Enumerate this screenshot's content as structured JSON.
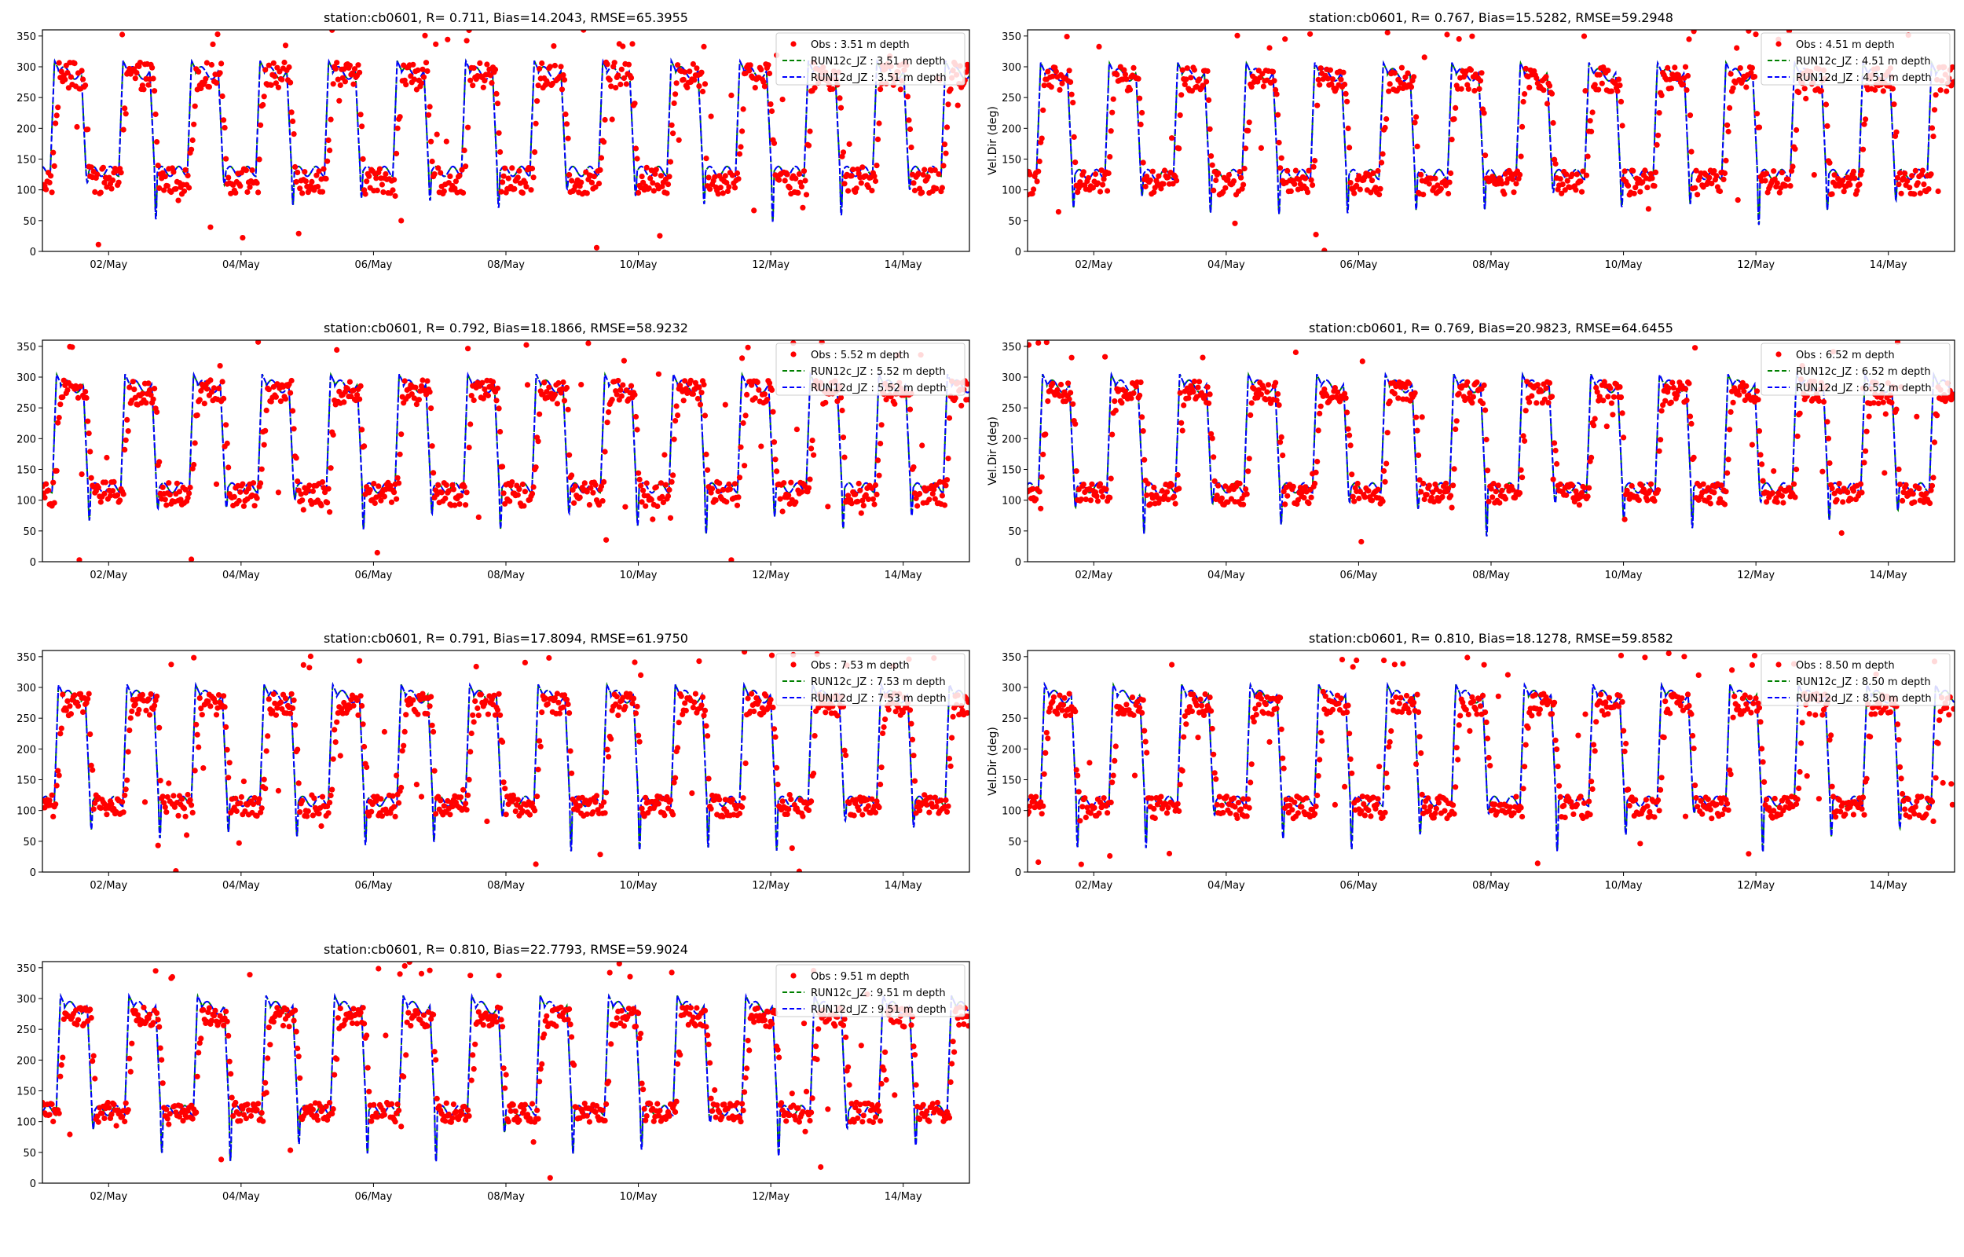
{
  "figure": {
    "background": "#ffffff"
  },
  "colors": {
    "obs": "#ff0000",
    "run12c": "#008000",
    "run12d": "#0000ff",
    "axis": "#000000"
  },
  "chart_data": [
    {
      "type": "scatter",
      "title": "station:cb0601, R= 0.711, Bias=14.2043, RMSE=65.3955",
      "ylabel": "",
      "ylim": [
        0,
        360
      ],
      "xlim": [
        1.0,
        15.0
      ],
      "yticks": [
        "0",
        "50",
        "100",
        "150",
        "200",
        "250",
        "300",
        "350"
      ],
      "xticks": [
        "02/May",
        "04/May",
        "06/May",
        "08/May",
        "10/May",
        "12/May",
        "14/May"
      ],
      "legend": [
        "Obs : 3.51 m depth",
        "RUN12c_JZ : 3.51 m depth",
        "RUN12d_JZ : 3.51 m depth"
      ],
      "legend_position": "top-right",
      "series": [
        {
          "name": "Obs : 3.51 m depth",
          "style": "dots",
          "color": "red",
          "high_level": 285,
          "low_level": 115,
          "scatter": 22
        },
        {
          "name": "RUN12c_JZ : 3.51 m depth",
          "style": "dashed",
          "color": "green",
          "high_level": 295,
          "low_level": 130
        },
        {
          "name": "RUN12d_JZ : 3.51 m depth",
          "style": "dashed",
          "color": "blue",
          "high_level": 295,
          "low_level": 130
        }
      ]
    },
    {
      "type": "scatter",
      "title": "station:cb0601, R= 0.767, Bias=15.5282, RMSE=59.2948",
      "ylabel": "Vel.Dir (deg)",
      "ylim": [
        0,
        360
      ],
      "xlim": [
        1.0,
        15.0
      ],
      "yticks": [
        "0",
        "50",
        "100",
        "150",
        "200",
        "250",
        "300",
        "350"
      ],
      "xticks": [
        "02/May",
        "04/May",
        "06/May",
        "08/May",
        "10/May",
        "12/May",
        "14/May"
      ],
      "legend": [
        "Obs : 4.51 m depth",
        "RUN12c_JZ : 4.51 m depth",
        "RUN12d_JZ : 4.51 m depth"
      ],
      "legend_position": "top-right",
      "series": [
        {
          "name": "Obs : 4.51 m depth",
          "style": "dots",
          "color": "red",
          "high_level": 280,
          "low_level": 112,
          "scatter": 20
        },
        {
          "name": "RUN12c_JZ : 4.51 m depth",
          "style": "dashed",
          "color": "green",
          "high_level": 292,
          "low_level": 125
        },
        {
          "name": "RUN12d_JZ : 4.51 m depth",
          "style": "dashed",
          "color": "blue",
          "high_level": 292,
          "low_level": 125
        }
      ]
    },
    {
      "type": "scatter",
      "title": "station:cb0601, R= 0.792, Bias=18.1866, RMSE=58.9232",
      "ylabel": "",
      "ylim": [
        0,
        360
      ],
      "xlim": [
        1.0,
        15.0
      ],
      "yticks": [
        "0",
        "50",
        "100",
        "150",
        "200",
        "250",
        "300",
        "350"
      ],
      "xticks": [
        "02/May",
        "04/May",
        "06/May",
        "08/May",
        "10/May",
        "12/May",
        "14/May"
      ],
      "legend": [
        "Obs : 5.52 m depth",
        "RUN12c_JZ : 5.52 m depth",
        "RUN12d_JZ : 5.52 m depth"
      ],
      "legend_position": "top-right",
      "series": [
        {
          "name": "Obs : 5.52 m depth",
          "style": "dots",
          "color": "red",
          "high_level": 275,
          "low_level": 110,
          "scatter": 20
        },
        {
          "name": "RUN12c_JZ : 5.52 m depth",
          "style": "dashed",
          "color": "green",
          "high_level": 290,
          "low_level": 120
        },
        {
          "name": "RUN12d_JZ : 5.52 m depth",
          "style": "dashed",
          "color": "blue",
          "high_level": 290,
          "low_level": 120
        }
      ]
    },
    {
      "type": "scatter",
      "title": "station:cb0601, R= 0.769, Bias=20.9823, RMSE=64.6455",
      "ylabel": "Vel.Dir (deg)",
      "ylim": [
        0,
        360
      ],
      "xlim": [
        1.0,
        15.0
      ],
      "yticks": [
        "0",
        "50",
        "100",
        "150",
        "200",
        "250",
        "300",
        "350"
      ],
      "xticks": [
        "02/May",
        "04/May",
        "06/May",
        "08/May",
        "10/May",
        "12/May",
        "14/May"
      ],
      "legend": [
        "Obs : 6.52 m depth",
        "RUN12c_JZ : 6.52 m depth",
        "RUN12d_JZ : 6.52 m depth"
      ],
      "legend_position": "top-right",
      "series": [
        {
          "name": "Obs : 6.52 m depth",
          "style": "dots",
          "color": "red",
          "high_level": 275,
          "low_level": 110,
          "scatter": 18
        },
        {
          "name": "RUN12c_JZ : 6.52 m depth",
          "style": "dashed",
          "color": "green",
          "high_level": 290,
          "low_level": 120
        },
        {
          "name": "RUN12d_JZ : 6.52 m depth",
          "style": "dashed",
          "color": "blue",
          "high_level": 290,
          "low_level": 120
        }
      ]
    },
    {
      "type": "scatter",
      "title": "station:cb0601, R= 0.791, Bias=17.8094, RMSE=61.9750",
      "ylabel": "",
      "ylim": [
        0,
        360
      ],
      "xlim": [
        1.0,
        15.0
      ],
      "yticks": [
        "0",
        "50",
        "100",
        "150",
        "200",
        "250",
        "300",
        "350"
      ],
      "xticks": [
        "02/May",
        "04/May",
        "06/May",
        "08/May",
        "10/May",
        "12/May",
        "14/May"
      ],
      "legend": [
        "Obs : 7.53 m depth",
        "RUN12c_JZ : 7.53 m depth",
        "RUN12d_JZ : 7.53 m depth"
      ],
      "legend_position": "top-right",
      "series": [
        {
          "name": "Obs : 7.53 m depth",
          "style": "dots",
          "color": "red",
          "high_level": 272,
          "low_level": 108,
          "scatter": 18
        },
        {
          "name": "RUN12c_JZ : 7.53 m depth",
          "style": "dashed",
          "color": "green",
          "high_level": 290,
          "low_level": 115
        },
        {
          "name": "RUN12d_JZ : 7.53 m depth",
          "style": "dashed",
          "color": "blue",
          "high_level": 290,
          "low_level": 115
        }
      ]
    },
    {
      "type": "scatter",
      "title": "station:cb0601, R= 0.810, Bias=18.1278, RMSE=59.8582",
      "ylabel": "Vel.Dir (deg)",
      "ylim": [
        0,
        360
      ],
      "xlim": [
        1.0,
        15.0
      ],
      "yticks": [
        "0",
        "50",
        "100",
        "150",
        "200",
        "250",
        "300",
        "350"
      ],
      "xticks": [
        "02/May",
        "04/May",
        "06/May",
        "08/May",
        "10/May",
        "12/May",
        "14/May"
      ],
      "legend": [
        "Obs : 8.50 m depth",
        "RUN12c_JZ : 8.50 m depth",
        "RUN12d_JZ : 8.50 m depth"
      ],
      "legend_position": "top-right",
      "series": [
        {
          "name": "Obs : 8.50 m depth",
          "style": "dots",
          "color": "red",
          "high_level": 272,
          "low_level": 105,
          "scatter": 18
        },
        {
          "name": "RUN12c_JZ : 8.50 m depth",
          "style": "dashed",
          "color": "green",
          "high_level": 290,
          "low_level": 115
        },
        {
          "name": "RUN12d_JZ : 8.50 m depth",
          "style": "dashed",
          "color": "blue",
          "high_level": 290,
          "low_level": 115
        }
      ]
    },
    {
      "type": "scatter",
      "title": "station:cb0601, R= 0.810, Bias=22.7793, RMSE=59.9024",
      "ylabel": "",
      "ylim": [
        0,
        360
      ],
      "xlim": [
        1.0,
        15.0
      ],
      "yticks": [
        "0",
        "50",
        "100",
        "150",
        "200",
        "250",
        "300",
        "350"
      ],
      "xticks": [
        "02/May",
        "04/May",
        "06/May",
        "08/May",
        "10/May",
        "12/May",
        "14/May"
      ],
      "legend": [
        "Obs : 9.51 m depth",
        "RUN12c_JZ : 9.51 m depth",
        "RUN12d_JZ : 9.51 m depth"
      ],
      "legend_position": "top-right",
      "series": [
        {
          "name": "Obs : 9.51 m depth",
          "style": "dots",
          "color": "red",
          "high_level": 270,
          "low_level": 115,
          "scatter": 16
        },
        {
          "name": "RUN12c_JZ : 9.51 m depth",
          "style": "dashed",
          "color": "green",
          "high_level": 290,
          "low_level": 118
        },
        {
          "name": "RUN12d_JZ : 9.51 m depth",
          "style": "dashed",
          "color": "blue",
          "high_level": 290,
          "low_level": 118
        }
      ]
    }
  ]
}
